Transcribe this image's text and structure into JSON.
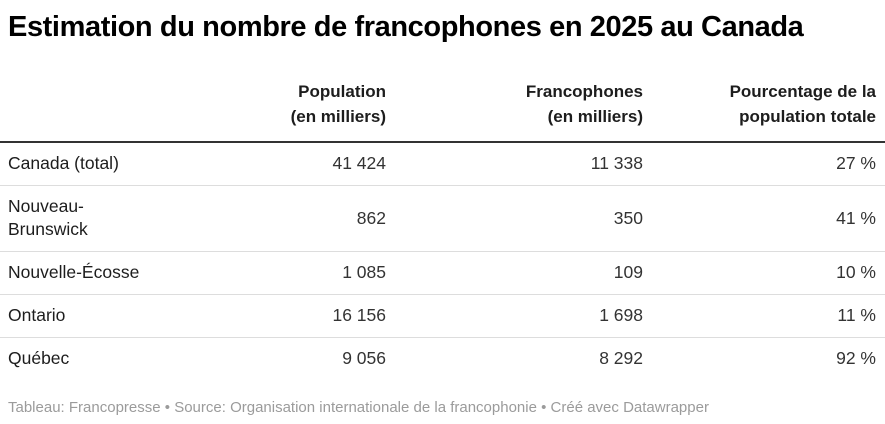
{
  "title": "Estimation du nombre de francophones en 2025 au Canada",
  "colors": {
    "background": "#ffffff",
    "title_text": "#000000",
    "header_text": "#1d1d1d",
    "body_text": "#333333",
    "header_rule": "#333333",
    "row_rule": "#dddddd",
    "footer_text": "#9b9b9b"
  },
  "table": {
    "columns": [
      {
        "label": ""
      },
      {
        "label": "Population\n(en milliers)"
      },
      {
        "label": "Francophones\n(en milliers)"
      },
      {
        "label": "Pourcentage de la\npopulation totale"
      }
    ],
    "rows": [
      {
        "label": "Canada (total)",
        "population": "41 424",
        "francophones": "11 338",
        "pourcentage": "27 %"
      },
      {
        "label": "Nouveau-\nBrunswick",
        "population": "862",
        "francophones": "350",
        "pourcentage": "41 %"
      },
      {
        "label": "Nouvelle-Écosse",
        "population": "1 085",
        "francophones": "109",
        "pourcentage": "10 %"
      },
      {
        "label": "Ontario",
        "population": "16 156",
        "francophones": "1 698",
        "pourcentage": "11 %"
      },
      {
        "label": "Québec",
        "population": "9 056",
        "francophones": "8 292",
        "pourcentage": "92 %"
      }
    ]
  },
  "footer": {
    "tableau_label": "Tableau: ",
    "tableau_value": "Francopresse",
    "source_label": " • Source: ",
    "source_value": "Organisation internationale de la francophonie",
    "created_label": " • Créé avec ",
    "created_value": "Datawrapper"
  },
  "chart_data": {
    "type": "table",
    "title": "Estimation du nombre de francophones en 2025 au Canada",
    "columns": [
      "",
      "Population (en milliers)",
      "Francophones (en milliers)",
      "Pourcentage de la population totale"
    ],
    "rows": [
      [
        "Canada (total)",
        41424,
        11338,
        27
      ],
      [
        "Nouveau-Brunswick",
        862,
        350,
        41
      ],
      [
        "Nouvelle-Écosse",
        1085,
        109,
        10
      ],
      [
        "Ontario",
        16156,
        1698,
        11
      ],
      [
        "Québec",
        9056,
        8292,
        92
      ]
    ],
    "percent_unit": "%",
    "notes": "Tableau: Francopresse • Source: Organisation internationale de la francophonie • Créé avec Datawrapper"
  }
}
